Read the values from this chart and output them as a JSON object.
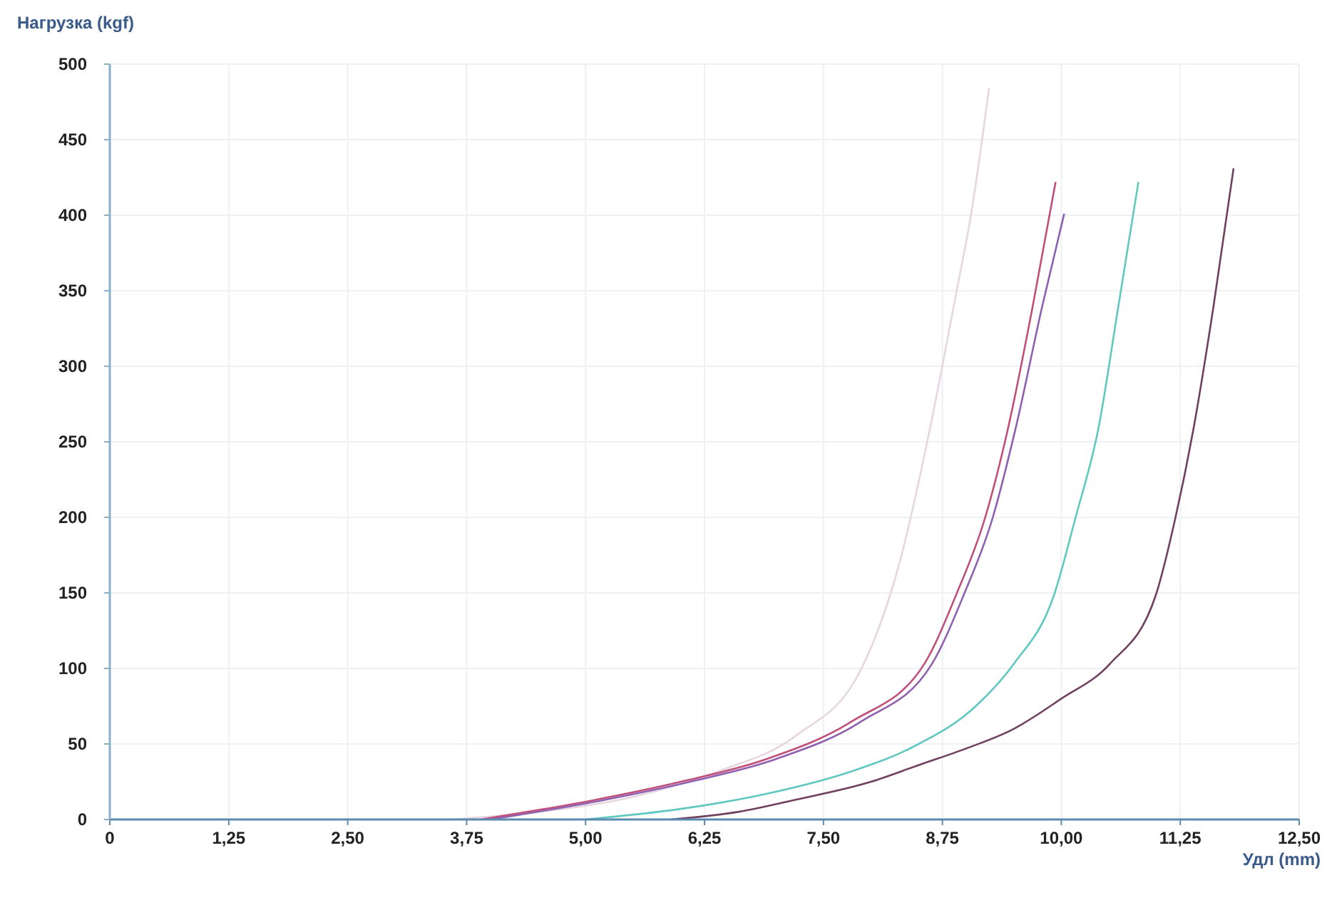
{
  "chart_data": {
    "type": "line",
    "xlabel": "Удл (mm)",
    "ylabel": "Нагрузка (kgf)",
    "xlim": [
      0,
      12.5
    ],
    "ylim": [
      0,
      500
    ],
    "xticks": [
      0,
      {
        "value": 1.25,
        "label": "1,25"
      },
      {
        "value": 2.5,
        "label": "2,50"
      },
      {
        "value": 3.75,
        "label": "3,75"
      },
      {
        "value": 5,
        "label": "5,00"
      },
      {
        "value": 6.25,
        "label": "6,25"
      },
      {
        "value": 7.5,
        "label": "7,50"
      },
      {
        "value": 8.75,
        "label": "8,75"
      },
      {
        "value": 10,
        "label": "10,00"
      },
      {
        "value": 11.25,
        "label": "11,25"
      },
      {
        "value": 12.5,
        "label": "12,50"
      }
    ],
    "yticks": [
      0,
      50,
      100,
      150,
      200,
      250,
      300,
      350,
      400,
      450,
      500
    ],
    "grid": true,
    "marker": "none",
    "line_style": "solid",
    "series": [
      {
        "color": "#e6d6e0",
        "x": [
          3.6,
          4.5,
          5.5,
          6.4,
          7.2,
          7.9,
          8.3,
          8.62,
          8.9,
          9.05,
          9.24
        ],
        "values": [
          0,
          5,
          15,
          32,
          55,
          100,
          170,
          259,
          350,
          400,
          484
        ]
      },
      {
        "color": "#c0507a",
        "x": [
          3.9,
          5.1,
          6.0,
          6.9,
          7.8,
          8.56,
          8.89,
          9.2,
          9.44,
          9.7,
          9.94
        ],
        "values": [
          0,
          13,
          25,
          40,
          65,
          103,
          148,
          200,
          259,
          340,
          422
        ]
      },
      {
        "color": "#9060b0",
        "x": [
          4.0,
          5.2,
          6.1,
          7.0,
          7.9,
          8.64,
          8.97,
          9.28,
          9.52,
          9.8,
          10.03
        ],
        "values": [
          0,
          13,
          25,
          40,
          65,
          103,
          148,
          200,
          259,
          340,
          401
        ]
      },
      {
        "color": "#60c8c0",
        "x": [
          5.0,
          6.0,
          6.9,
          7.8,
          8.44,
          9.1,
          9.5,
          9.92,
          10.15,
          10.39,
          10.6,
          10.81
        ],
        "values": [
          0,
          7,
          17,
          32,
          48,
          75,
          103,
          148,
          200,
          259,
          340,
          422
        ]
      },
      {
        "color": "#704060",
        "x": [
          5.9,
          6.6,
          7.2,
          8.0,
          8.5,
          9.0,
          9.5,
          10.0,
          10.51,
          10.99,
          11.2,
          11.39,
          11.6,
          11.81
        ],
        "values": [
          0,
          5,
          13,
          25,
          36,
          47,
          60,
          80,
          103,
          148,
          200,
          259,
          340,
          431
        ]
      }
    ]
  }
}
